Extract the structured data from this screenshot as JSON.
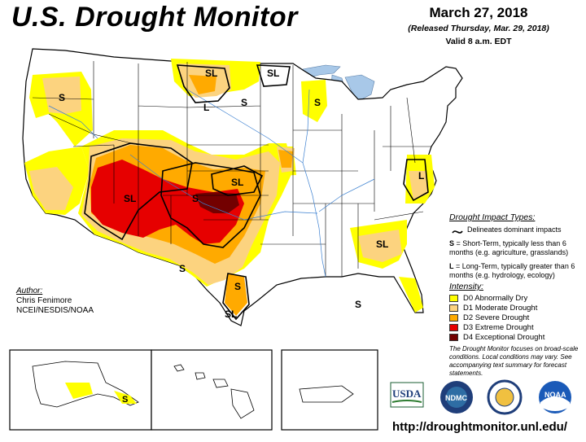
{
  "header": {
    "title": "U.S. Drought Monitor",
    "date": "March 27, 2018",
    "released": "(Released Thursday, Mar. 29, 2018)",
    "valid": "Valid 8 a.m. EDT"
  },
  "impact_types": {
    "heading": "Drought Impact Types:",
    "delineates": "Delineates dominant impacts",
    "short_term_symbol": "S",
    "short_term_text": " = Short-Term, typically less than 6 months (e.g. agriculture, grasslands)",
    "long_term_symbol": "L",
    "long_term_text": " = Long-Term, typically greater than 6 months (e.g. hydrology, ecology)"
  },
  "legend": {
    "heading": "Intensity:",
    "items": [
      {
        "label": "D0 Abnormally Dry",
        "color": "#FFFF00"
      },
      {
        "label": "D1 Moderate Drought",
        "color": "#FCD37F"
      },
      {
        "label": "D2 Severe Drought",
        "color": "#FFAA00"
      },
      {
        "label": "D3 Extreme Drought",
        "color": "#E60000"
      },
      {
        "label": "D4 Exceptional Drought",
        "color": "#730000"
      }
    ]
  },
  "note": "The Drought Monitor focuses on broad-scale conditions. Local conditions may vary. See accompanying text summary for forecast statements.",
  "author": {
    "heading": "Author:",
    "name": "Chris Fenimore",
    "org": "NCEI/NESDIS/NOAA"
  },
  "map_labels": {
    "oregon": "S",
    "montana_north": "SL",
    "north_dakota": "SL",
    "montana_l": "L",
    "sd_s": "S",
    "michigan": "S",
    "southwest": "SL",
    "colorado": "S",
    "kansas": "SL",
    "virginia": "L",
    "carolinas": "SL",
    "texas_w": "S",
    "texas_e": "S",
    "texas_s": "SL",
    "gulf": "S",
    "alaska": "S"
  },
  "logos": {
    "usda": "USDA",
    "ndmc": "NDMC",
    "noaa": "NOAA"
  },
  "url": "http://droughtmonitor.unl.edu/"
}
